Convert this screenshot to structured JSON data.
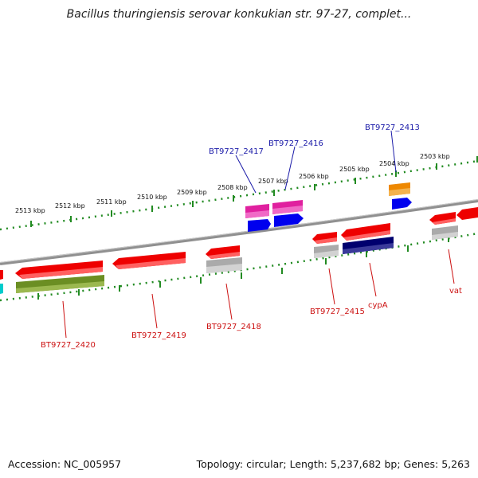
{
  "title": "Bacillus thuringiensis serovar konkukian str. 97-27, complet...",
  "footer": {
    "accession": "Accession: NC_005957",
    "topology": "Topology: circular; Length: 5,237,682 bp; Genes: 5,263"
  },
  "ruler_labels": [
    "2513 kbp",
    "2512 kbp",
    "2511 kbp",
    "2510 kbp",
    "2509 kbp",
    "2508 kbp",
    "2507 kbp",
    "2506 kbp",
    "2505 kbp",
    "2504 kbp",
    "2503 kbp"
  ],
  "gene_labels_top": [
    "BT9727_2417",
    "BT9727_2416",
    "BT9727_2413"
  ],
  "gene_labels_bottom": [
    "BT9727_2420",
    "BT9727_2419",
    "BT9727_2418",
    "BT9727_2415",
    "cypA",
    "vat"
  ],
  "colors": {
    "ruler": "#228B22",
    "backbone": "#808080",
    "gene_red": "#ee0000",
    "gene_olive": "#6b8e23",
    "gene_magenta": "#e0209f",
    "gene_blue": "#0000ee",
    "gene_navy": "#00006e",
    "gene_orange": "#ee8800",
    "gene_gray": "#aaaaaa",
    "gene_cyan": "#00cccc",
    "top_label": "#1a1aa8",
    "bottom_label": "#cc1111"
  }
}
